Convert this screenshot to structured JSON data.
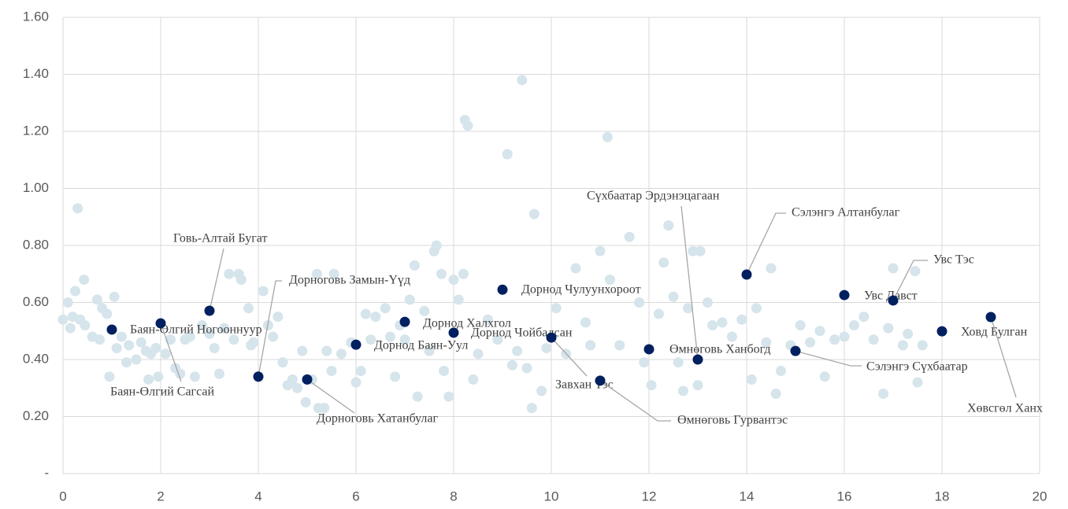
{
  "chart_data": {
    "type": "scatter",
    "xlim": [
      0,
      20
    ],
    "xticks": [
      0,
      2,
      4,
      6,
      8,
      10,
      12,
      14,
      16,
      18,
      20
    ],
    "ylim": [
      0,
      1.6
    ],
    "yticks": [
      {
        "value": 0,
        "label": "-"
      },
      {
        "value": 0.2,
        "label": "0.20"
      },
      {
        "value": 0.4,
        "label": "0.40"
      },
      {
        "value": 0.6,
        "label": "0.60"
      },
      {
        "value": 0.8,
        "label": "0.80"
      },
      {
        "value": 1.0,
        "label": "1.00"
      },
      {
        "value": 1.2,
        "label": "1.20"
      },
      {
        "value": 1.4,
        "label": "1.40"
      },
      {
        "value": 1.6,
        "label": "1.60"
      }
    ],
    "grid": true,
    "series": [
      {
        "color": "#d6e4eb",
        "x": [
          0.0,
          0.1,
          0.15,
          0.2,
          0.25,
          0.3,
          0.35,
          0.43,
          0.45,
          0.6,
          0.7,
          0.75,
          0.8,
          0.9,
          0.95,
          1.05,
          1.1,
          1.2,
          1.3,
          1.35,
          1.5,
          1.6,
          1.7,
          1.75,
          1.8,
          1.9,
          1.95,
          2.1,
          2.2,
          2.3,
          2.4,
          2.5,
          2.6,
          2.7,
          2.85,
          3.0,
          3.1,
          3.2,
          3.3,
          3.4,
          3.5,
          3.6,
          3.65,
          3.8,
          3.85,
          3.9,
          4.1,
          4.2,
          4.3,
          4.4,
          4.5,
          4.6,
          4.7,
          4.8,
          4.9,
          4.97,
          5.1,
          5.23,
          5.35,
          5.4,
          5.5,
          5.2,
          5.55,
          5.7,
          5.9,
          6.0,
          6.1,
          6.2,
          6.3,
          6.4,
          6.6,
          6.7,
          6.8,
          6.9,
          7.0,
          7.1,
          7.2,
          7.26,
          7.4,
          7.5,
          7.6,
          7.65,
          7.75,
          7.8,
          7.9,
          8.0,
          8.1,
          8.2,
          8.23,
          8.29,
          8.4,
          8.5,
          8.7,
          8.9,
          9.1,
          9.2,
          9.3,
          9.4,
          9.5,
          9.6,
          9.65,
          9.8,
          9.9,
          10.1,
          10.3,
          10.5,
          10.7,
          10.8,
          11.0,
          11.15,
          11.2,
          11.4,
          11.6,
          11.8,
          11.9,
          12.05,
          12.2,
          12.3,
          12.4,
          12.5,
          12.6,
          12.7,
          12.8,
          12.9,
          13.0,
          13.05,
          13.2,
          13.3,
          13.5,
          13.7,
          13.9,
          14.1,
          14.2,
          14.4,
          14.5,
          14.6,
          14.7,
          14.9,
          15.1,
          15.3,
          15.5,
          15.6,
          15.8,
          16.0,
          16.2,
          16.4,
          16.6,
          16.8,
          16.9,
          17.0,
          17.2,
          17.3,
          17.45,
          17.5,
          17.6
        ],
        "values": [
          0.54,
          0.6,
          0.51,
          0.55,
          0.64,
          0.93,
          0.54,
          0.68,
          0.52,
          0.48,
          0.61,
          0.47,
          0.58,
          0.56,
          0.34,
          0.62,
          0.44,
          0.48,
          0.39,
          0.45,
          0.4,
          0.46,
          0.43,
          0.33,
          0.42,
          0.44,
          0.34,
          0.42,
          0.47,
          0.37,
          0.35,
          0.47,
          0.48,
          0.34,
          0.52,
          0.49,
          0.44,
          0.35,
          0.51,
          0.7,
          0.47,
          0.7,
          0.68,
          0.58,
          0.45,
          0.46,
          0.64,
          0.52,
          0.48,
          0.55,
          0.39,
          0.31,
          0.33,
          0.3,
          0.43,
          0.25,
          0.33,
          0.23,
          0.23,
          0.43,
          0.36,
          0.7,
          0.7,
          0.42,
          0.46,
          0.32,
          0.36,
          0.56,
          0.47,
          0.55,
          0.58,
          0.48,
          0.34,
          0.52,
          0.47,
          0.61,
          0.73,
          0.27,
          0.57,
          0.43,
          0.78,
          0.8,
          0.7,
          0.36,
          0.27,
          0.68,
          0.61,
          0.7,
          1.24,
          1.22,
          0.33,
          0.42,
          0.54,
          0.47,
          1.12,
          0.38,
          0.43,
          1.38,
          0.37,
          0.23,
          0.91,
          0.29,
          0.44,
          0.58,
          0.42,
          0.72,
          0.53,
          0.45,
          0.78,
          1.18,
          0.68,
          0.45,
          0.83,
          0.6,
          0.39,
          0.31,
          0.56,
          0.74,
          0.87,
          0.62,
          0.39,
          0.29,
          0.58,
          0.78,
          0.31,
          0.78,
          0.6,
          0.52,
          0.53,
          0.48,
          0.54,
          0.33,
          0.58,
          0.46,
          0.72,
          0.28,
          0.36,
          0.45,
          0.52,
          0.46,
          0.5,
          0.34,
          0.47,
          0.48,
          0.52,
          0.55,
          0.47,
          0.28,
          0.51,
          0.72,
          0.45,
          0.49,
          0.71,
          0.32,
          0.45
        ]
      },
      {
        "color": "#002060",
        "x": [
          1,
          2,
          3,
          4,
          5,
          6,
          7,
          8,
          9,
          10,
          11,
          12,
          13,
          14,
          15,
          16,
          17,
          18,
          19
        ],
        "values": [
          0.505,
          0.527,
          0.571,
          0.34,
          0.33,
          0.452,
          0.532,
          0.494,
          0.645,
          0.477,
          0.326,
          0.436,
          0.4,
          0.698,
          0.43,
          0.626,
          0.607,
          0.499,
          0.549
        ],
        "labels": [
          "Баян-Өлгий Ногооннуур",
          "Баян-Өлгий Сагсай",
          "Говь-Алтай Бугат",
          "Дорноговь Замын-Үүд",
          "Дорноговь Хатанбулаг",
          "Дорнод Баян-Уул",
          "Дорнод Халхгол",
          "Дорнод Чойбалсан",
          "Дорнод Чулуунхороот",
          "Завхан Тэс",
          "Өмнөговь Гурвантэс",
          "Өмнөговь Ханбогд",
          "Сүхбаатар Эрдэнэцагаан",
          "Сэлэнгэ Алтанбулаг",
          "Сэлэнгэ Сүхбаатар",
          "Увс Давст",
          "Увс Тэс",
          "Ховд Булган",
          "Хөвсгөл Ханх"
        ]
      }
    ]
  }
}
